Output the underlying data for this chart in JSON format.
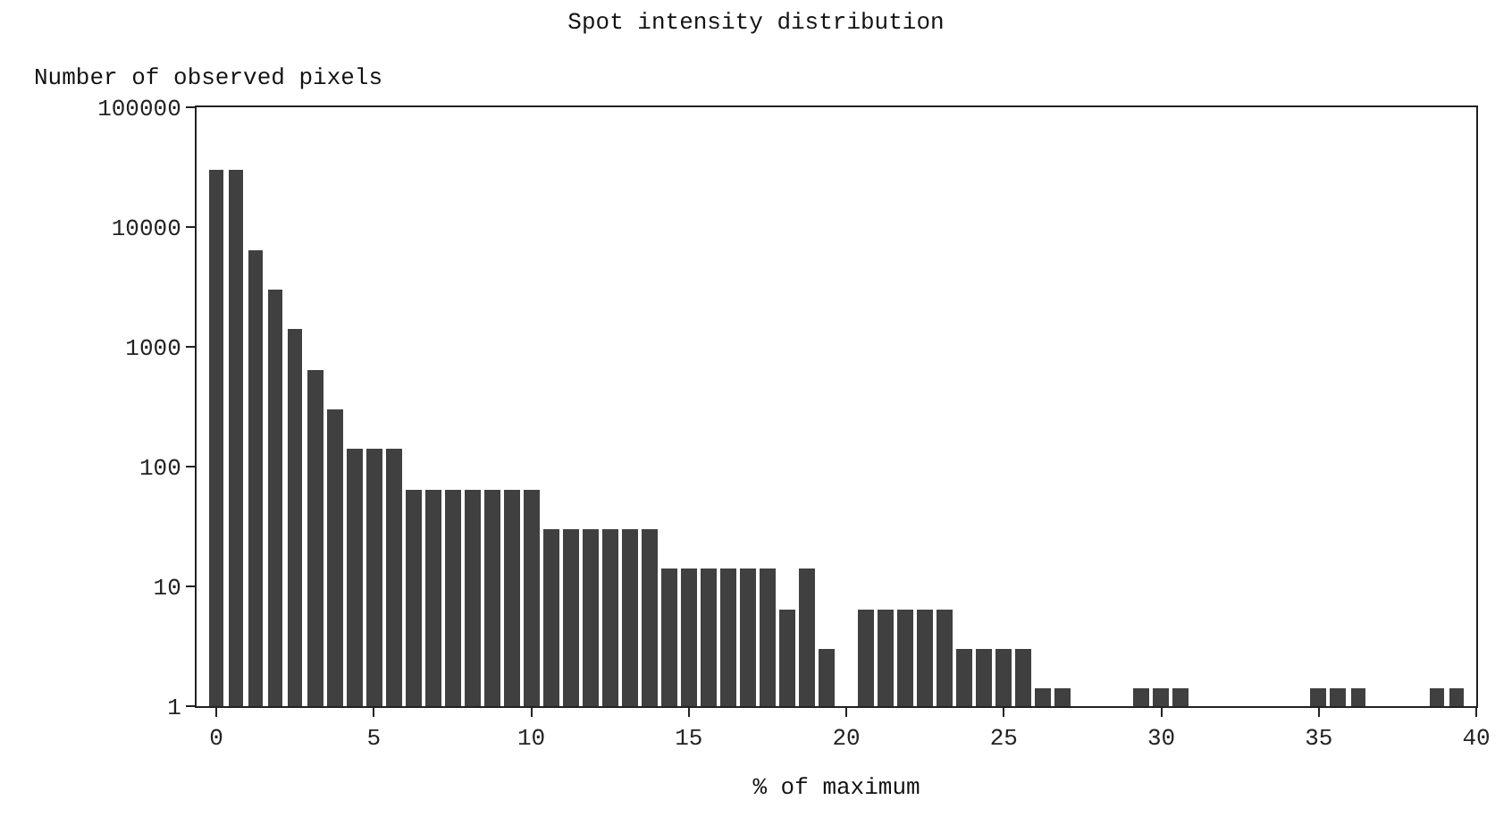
{
  "chart_data": {
    "type": "histogram",
    "title": "Spot intensity distribution",
    "xlabel": "% of maximum",
    "ylabel": "Number of observed pixels",
    "bins": [
      -0.3125,
      0.3125,
      0.9375,
      1.5625,
      2.1875,
      2.8125,
      3.4375,
      4.0625,
      4.6875,
      5.3125,
      5.9375,
      6.5625,
      7.1875,
      7.8125,
      8.4375,
      9.0625,
      9.6875,
      10.3125,
      10.9375,
      11.5625,
      12.1875,
      12.8125,
      13.4375,
      14.0625,
      14.6875,
      15.3125,
      15.9375,
      16.5625,
      17.1875,
      17.8125,
      18.4375,
      19.0625,
      19.6875,
      20.3125,
      20.9375,
      21.5625,
      22.1875,
      22.8125,
      23.4375,
      24.0625,
      24.6875,
      25.3125,
      25.9375,
      26.5625,
      27.1875,
      27.8125,
      28.4375,
      29.0625,
      29.6875,
      30.3125,
      30.9375,
      31.5625,
      32.1875,
      32.8125,
      33.4375,
      34.0625,
      34.6875,
      35.3125,
      35.9375,
      36.5625,
      37.1875,
      37.8125,
      38.4375,
      39.0625,
      39.6875
    ],
    "values": [
      30000,
      30000,
      6500,
      3000,
      1400,
      650,
      300,
      140,
      140,
      140,
      65,
      65,
      65,
      65,
      65,
      65,
      65,
      30,
      30,
      30,
      30,
      30,
      30,
      14,
      14,
      14,
      14,
      14,
      14,
      6.5,
      14,
      3,
      null,
      6.5,
      6.5,
      6.5,
      6.5,
      6.5,
      3,
      3,
      3,
      3,
      1.4,
      1.4,
      null,
      null,
      null,
      1.4,
      1.4,
      1.4,
      null,
      null,
      null,
      null,
      null,
      null,
      1.4,
      1.4,
      1.4,
      null,
      null,
      null,
      1.4,
      1.4
    ],
    "color": "#404040",
    "log": "y",
    "xlim": [
      -0.625,
      40
    ],
    "ylim": [
      1,
      100000
    ],
    "xticks": [
      0,
      5,
      10,
      15,
      20,
      25,
      30,
      35,
      40
    ],
    "yticks": [
      1,
      10,
      100,
      1000,
      10000,
      100000
    ]
  }
}
